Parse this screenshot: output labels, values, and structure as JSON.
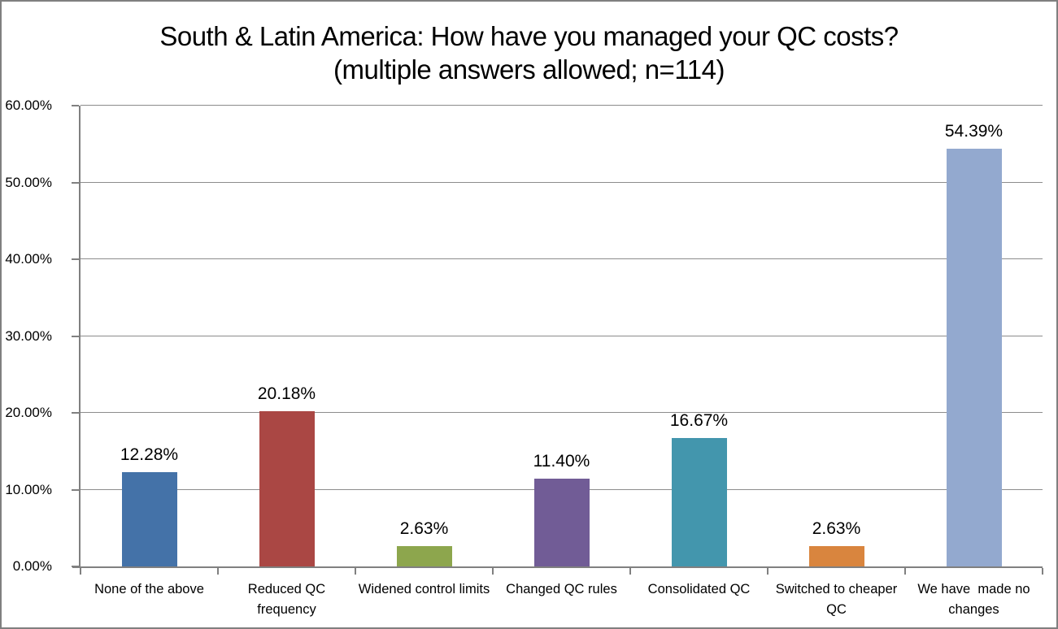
{
  "chart_data": {
    "type": "bar",
    "title": "South & Latin America: How have you managed your QC costs? (multiple answers allowed; n=114)",
    "categories": [
      "None of the above",
      "Reduced QC frequency",
      "Widened control limits",
      "Changed QC rules",
      "Consolidated QC",
      "Switched to cheaper QC",
      "We have  made no changes"
    ],
    "values": [
      12.28,
      20.18,
      2.63,
      11.4,
      16.67,
      2.63,
      54.39
    ],
    "value_labels": [
      "12.28%",
      "20.18%",
      "2.63%",
      "11.40%",
      "16.67%",
      "2.63%",
      "54.39%"
    ],
    "bar_colors": [
      "#4472A8",
      "#AA4744",
      "#8DA64D",
      "#715C96",
      "#4396AD",
      "#D9853E",
      "#93A9CF"
    ],
    "xlabel": "",
    "ylabel": "",
    "ylim": [
      0,
      60
    ],
    "ytick_step": 10,
    "ytick_labels": [
      "0.00%",
      "10.00%",
      "20.00%",
      "30.00%",
      "40.00%",
      "50.00%",
      "60.00%"
    ],
    "grid": true,
    "legend": "none",
    "axis_color": "#808080",
    "gridline_color": "#8C8C8C",
    "background_color": "#FFFFFF",
    "border_color": "#7F7F7F"
  }
}
